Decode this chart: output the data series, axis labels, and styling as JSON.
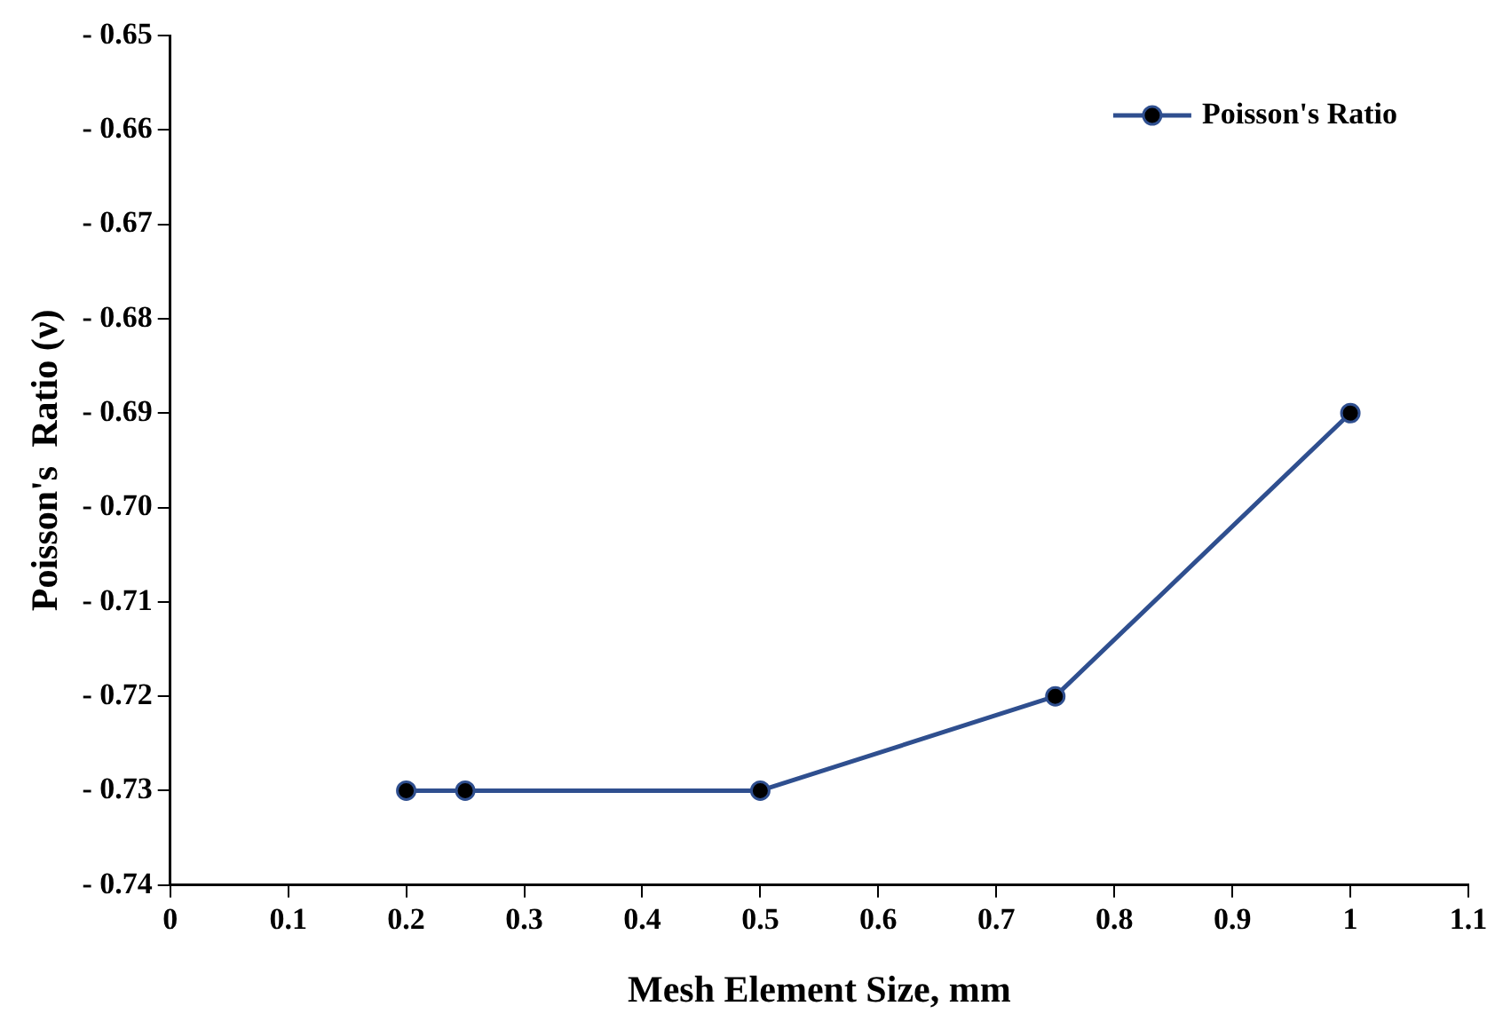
{
  "chart_data": {
    "type": "line",
    "xlabel": "Mesh Element Size, mm",
    "ylabel": "Poisson's  Ratio (ν)",
    "x": [
      0.2,
      0.25,
      0.5,
      0.75,
      1
    ],
    "series": [
      {
        "name": "Poisson's Ratio",
        "color": "#2f4f8f",
        "values": [
          -0.73,
          -0.73,
          -0.73,
          -0.72,
          -0.69
        ]
      }
    ],
    "xlim": [
      0,
      1.1
    ],
    "xticks": [
      0,
      0.1,
      0.2,
      0.3,
      0.4,
      0.5,
      0.6,
      0.7,
      0.8,
      0.9,
      1,
      1.1
    ],
    "ylim": [
      -0.74,
      -0.65
    ],
    "yticks": [
      {
        "value": -0.74,
        "label": "- 0.74"
      },
      {
        "value": -0.73,
        "label": "- 0.73"
      },
      {
        "value": -0.72,
        "label": "- 0.72"
      },
      {
        "value": -0.71,
        "label": "- 0.71"
      },
      {
        "value": -0.7,
        "label": "- 0.70"
      },
      {
        "value": -0.69,
        "label": "- 0.69"
      },
      {
        "value": -0.68,
        "label": "- 0.68"
      },
      {
        "value": -0.67,
        "label": "- 0.67"
      },
      {
        "value": -0.66,
        "label": "- 0.66"
      },
      {
        "value": -0.65,
        "label": "- 0.65"
      }
    ],
    "grid": false,
    "legend": "top right",
    "marker": "circle",
    "line_style": "solid"
  }
}
